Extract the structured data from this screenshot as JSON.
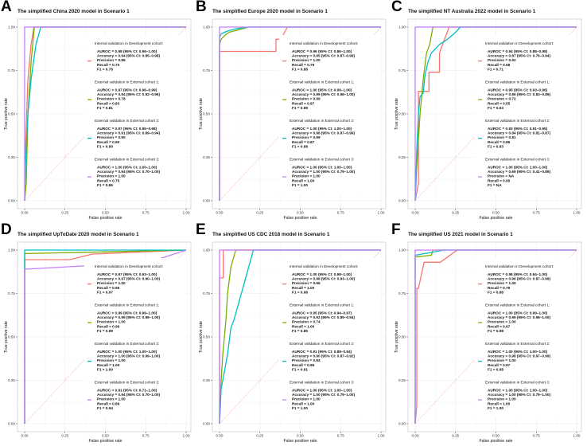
{
  "colors": {
    "dev": "#F8766D",
    "ext1": "#7CAE00",
    "ext2": "#00BFC4",
    "ext3": "#C77CFF",
    "diag": "#F8766D"
  },
  "chart_data": [
    {
      "type": "line",
      "label": "A",
      "title": "The simplified China 2020 model in Scenario 1",
      "xlabel": "False positive rate",
      "ylabel": "True positive rate",
      "xlim": [
        0,
        1
      ],
      "ylim": [
        0,
        1
      ],
      "xticks": [
        "0.00",
        "0.25",
        "0.50",
        "0.75",
        "1.00"
      ],
      "yticks": [
        "0.00",
        "0.25",
        "0.50",
        "0.75",
        "1.00"
      ],
      "grid": true,
      "legend_position": "right",
      "series": [
        {
          "key": "dev",
          "x": [
            0,
            0.005,
            0.02,
            0.04,
            0.057,
            1
          ],
          "y": [
            0,
            0.3,
            0.7,
            0.9,
            1,
            1
          ]
        },
        {
          "key": "ext1",
          "x": [
            0,
            0.01,
            0.02,
            0.04,
            0.06,
            1
          ],
          "y": [
            0,
            0.1,
            0.5,
            0.8,
            1,
            1
          ]
        },
        {
          "key": "ext2",
          "x": [
            0,
            0.005,
            0.02,
            0.04,
            0.07,
            0.1,
            1
          ],
          "y": [
            0,
            0.2,
            0.5,
            0.7,
            0.9,
            1,
            1
          ]
        },
        {
          "key": "ext3",
          "x": [
            0,
            0,
            1
          ],
          "y": [
            0,
            1,
            1
          ]
        }
      ],
      "legend": [
        {
          "key": "dev",
          "header": "Internal validation in Development cohort:",
          "lines": [
            "AUROC    = 0.98 (95% CI: 0.96–1.00)",
            "Accuracy = 0.94 (95% CI: 0.85–0.98)",
            "Precision = 0.88",
            "Recall      = 0.70",
            "F1            = 0.78"
          ]
        },
        {
          "key": "ext1",
          "header": "External validation in External cohort 1:",
          "lines": [
            "AUROC    = 0.97 (95% CI: 0.96–0.99)",
            "Accuracy = 0.94 (95% CI: 0.92–0.96)",
            "Precision = 0.78",
            "Recall      = 0.83",
            "F1            = 0.81"
          ]
        },
        {
          "key": "ext2",
          "header": "External validation in External cohort 2:",
          "lines": [
            "AUROC    = 0.97 (95% CI: 0.95–0.98)",
            "Accuracy = 0.91 (95% CI: 0.89–0.94)",
            "Precision = 0.90",
            "Recall      = 0.90",
            "F1            = 0.90"
          ]
        },
        {
          "key": "ext3",
          "header": "External validation in External cohort 3:",
          "lines": [
            "AUROC    = 1.00 (95% CI: 1.00–1.00)",
            "Accuracy = 0.94 (95% CI: 0.70–1.00)",
            "Precision = 1.00",
            "Recall      = 0.75",
            "F1            = 0.86"
          ]
        }
      ]
    },
    {
      "type": "line",
      "label": "B",
      "title": "The simplified Europe 2020 model in Scenario 1",
      "xlabel": "False positive rate",
      "ylabel": "True positive rate",
      "xlim": [
        0,
        1
      ],
      "ylim": [
        0,
        1
      ],
      "xticks": [
        "0.00",
        "0.25",
        "0.50",
        "0.75",
        "1.00"
      ],
      "yticks": [
        "0.00",
        "0.25",
        "0.50",
        "0.75",
        "1.00"
      ],
      "grid": true,
      "legend_position": "right",
      "series": [
        {
          "key": "dev",
          "x": [
            0,
            0,
            0.35,
            0.35,
            0.38,
            0.42,
            1
          ],
          "y": [
            0,
            0.86,
            0.86,
            0.93,
            0.93,
            1,
            1
          ]
        },
        {
          "key": "ext1",
          "x": [
            0,
            0,
            0.01,
            0.03,
            0.06,
            0.1,
            0.18,
            1
          ],
          "y": [
            0,
            0.9,
            0.93,
            0.95,
            0.97,
            0.98,
            1,
            1
          ]
        },
        {
          "key": "ext2",
          "x": [
            0,
            0,
            0.01,
            0.03,
            0.06,
            0.1,
            0.18,
            1
          ],
          "y": [
            0,
            0.94,
            0.96,
            0.97,
            0.98,
            0.99,
            1,
            1
          ]
        },
        {
          "key": "ext3",
          "x": [
            0,
            0,
            1
          ],
          "y": [
            0,
            1,
            1
          ]
        }
      ],
      "legend": [
        {
          "key": "dev",
          "header": "Internal validation in Development cohort:",
          "lines": [
            "AUROC    = 0.96 (95% CI: 0.86–1.00)",
            "Accuracy = 0.95 (95% CI: 0.87–0.99)",
            "Precision = 1.00",
            "Recall      = 0.79",
            "F1            = 0.88"
          ]
        },
        {
          "key": "ext1",
          "header": "External validation in External cohort 1:",
          "lines": [
            "AUROC    = 1.00 (95% CI: 0.99–1.00)",
            "Accuracy = 0.99 (95% CI: 0.98–1.00)",
            "Precision = 0.99",
            "Recall      = 0.97",
            "F1            = 0.98"
          ]
        },
        {
          "key": "ext2",
          "header": "External validation in External cohort 2:",
          "lines": [
            "AUROC    = 1.00 (95% CI: 1.00–1.00)",
            "Accuracy = 0.98 (95% CI: 0.97–0.99)",
            "Precision = 0.99",
            "Recall      = 0.97",
            "F1            = 0.98"
          ]
        },
        {
          "key": "ext3",
          "header": "External validation in External cohort 3:",
          "lines": [
            "AUROC    = 1.00 (95% CI: 1.00–1.00)",
            "Accuracy = 1.00 (95% CI: 0.79–1.00)",
            "Precision = 1.00",
            "Recall      = 1.00",
            "F1            = 1.00"
          ]
        }
      ]
    },
    {
      "type": "line",
      "label": "C",
      "title": "The simplified NT Australia 2022 model in Scenario 1",
      "xlabel": "False positive rate",
      "ylabel": "True positive rate",
      "xlim": [
        0,
        1
      ],
      "ylim": [
        0,
        1
      ],
      "xticks": [
        "0.00",
        "0.25",
        "0.50",
        "0.75",
        "1.00"
      ],
      "yticks": [
        "0.00",
        "0.25",
        "0.50",
        "0.75",
        "1.00"
      ],
      "grid": true,
      "legend_position": "right",
      "series": [
        {
          "key": "dev",
          "x": [
            0,
            0.02,
            0.02,
            0.085,
            0.085,
            0.15,
            0.15,
            0.21,
            1
          ],
          "y": [
            0,
            0.1,
            0.63,
            0.63,
            0.74,
            0.74,
            0.85,
            1,
            1
          ]
        },
        {
          "key": "ext1",
          "x": [
            0,
            0.01,
            0.03,
            0.05,
            0.07,
            0.09,
            0.11,
            1
          ],
          "y": [
            0,
            0.2,
            0.5,
            0.7,
            0.85,
            0.9,
            1,
            1
          ]
        },
        {
          "key": "ext2",
          "x": [
            0,
            0.01,
            0.02,
            0.03,
            0.05,
            0.06,
            0.08,
            0.1,
            0.15,
            0.2,
            0.25,
            0.28,
            1
          ],
          "y": [
            0,
            0.3,
            0.5,
            0.6,
            0.62,
            0.72,
            0.8,
            0.85,
            0.9,
            0.93,
            0.97,
            1,
            1
          ]
        },
        {
          "key": "ext3",
          "x": [
            0,
            0,
            1
          ],
          "y": [
            0,
            1,
            1
          ]
        }
      ],
      "legend": [
        {
          "key": "dev",
          "header": "Internal validation in Development cohort:",
          "lines": [
            "AUROC    = 0.94 (95% CI: 0.88–0.98)",
            "Accuracy = 0.87 (95% CI: 0.76–0.94)",
            "Precision = 0.92",
            "Recall      = 0.58",
            "F1            = 0.71"
          ]
        },
        {
          "key": "ext1",
          "header": "External validation in External cohort 1:",
          "lines": [
            "AUROC    = 0.95 (95% CI: 0.93–0.96)",
            "Accuracy = 0.86 (95% CI: 0.83–0.89)",
            "Precision = 0.72",
            "Recall      = 0.55",
            "F1            = 0.63"
          ]
        },
        {
          "key": "ext2",
          "header": "External validation in External cohort 2:",
          "lines": [
            "AUROC    = 0.93 (95% CI: 0.91–0.95)",
            "Accuracy = 0.84 (95% CI: 0.81–0.87)",
            "Precision = 0.81",
            "Recall      = 0.86",
            "F1            = 0.83"
          ]
        },
        {
          "key": "ext3",
          "header": "External validation in External cohort 3:",
          "lines": [
            "AUROC    = 1.00 (95% CI: 1.00–1.00)",
            "Accuracy = 0.69 (95% CI: 0.41–0.89)",
            "Precision = NA",
            "Recall      = 0.00",
            "F1            = NA"
          ]
        }
      ]
    },
    {
      "type": "line",
      "label": "D",
      "title": "The simplified UpToDate 2020 model in Scenario 1",
      "xlabel": "False positive rate",
      "ylabel": "True positive rate",
      "xlim": [
        0,
        1
      ],
      "ylim": [
        0,
        1
      ],
      "xticks": [
        "0.00",
        "0.25",
        "0.50",
        "0.75",
        "1.00"
      ],
      "yticks": [
        "0.00",
        "0.25",
        "0.50",
        "0.75",
        "1.00"
      ],
      "grid": true,
      "legend_position": "right",
      "series": [
        {
          "key": "dev",
          "x": [
            0,
            0,
            0.28,
            0.42,
            1
          ],
          "y": [
            0,
            0.945,
            0.945,
            0.977,
            1
          ]
        },
        {
          "key": "ext1",
          "x": [
            0,
            0,
            1
          ],
          "y": [
            0,
            0.98,
            1
          ]
        },
        {
          "key": "ext2",
          "x": [
            0,
            0,
            1
          ],
          "y": [
            0,
            1,
            1
          ]
        },
        {
          "key": "ext3",
          "x": [
            0,
            0,
            0.77,
            1
          ],
          "y": [
            0,
            0.89,
            0.93,
            1
          ]
        }
      ],
      "legend": [
        {
          "key": "dev",
          "header": "Internal validation in Development cohort:",
          "lines": [
            "AUROC    = 0.97 (95% CI: 0.93–1.00)",
            "Accuracy = 0.97 (95% CI: 0.90–1.00)",
            "Precision = 1.00",
            "Recall      = 0.95",
            "F1            = 0.97"
          ]
        },
        {
          "key": "ext1",
          "header": "External validation in External cohort 1:",
          "lines": [
            "AUROC    = 0.99 (95% CI: 0.99–1.00)",
            "Accuracy = 0.99 (95% CI: 0.98–1.00)",
            "Precision = 1.00",
            "Recall      = 0.99",
            "F1            = 0.99"
          ]
        },
        {
          "key": "ext2",
          "header": "External validation in External cohort 2:",
          "lines": [
            "AUROC    = 1.00 (95% CI: 1.00–1.00)",
            "Accuracy = 1.00 (95% CI: 0.99–1.00)",
            "Precision = 1.00",
            "Recall      = 1.00",
            "F1            = 1.00"
          ]
        },
        {
          "key": "ext3",
          "header": "External validation in External cohort 3:",
          "lines": [
            "AUROC    = 0.91 (95% CI: 0.71–1.00)",
            "Accuracy = 0.94 (95% CI: 0.70–1.00)",
            "Precision = 1.00",
            "Recall      = 0.89",
            "F1            = 0.94"
          ]
        }
      ]
    },
    {
      "type": "line",
      "label": "E",
      "title": "The simplified US CDC 2018 model in Scenario 1",
      "xlabel": "False positive rate",
      "ylabel": "True positive rate",
      "xlim": [
        0,
        1
      ],
      "ylim": [
        0,
        1
      ],
      "xticks": [
        "0.00",
        "0.25",
        "0.50",
        "0.75",
        "1.00"
      ],
      "yticks": [
        "0.00",
        "0.25",
        "0.50",
        "0.75",
        "1.00"
      ],
      "grid": true,
      "legend_position": "right",
      "series": [
        {
          "key": "dev",
          "x": [
            0,
            0,
            0.023,
            0.023,
            1
          ],
          "y": [
            0,
            0.84,
            0.84,
            1,
            1
          ]
        },
        {
          "key": "ext1",
          "x": [
            0,
            0.005,
            0.01,
            0.02,
            0.03,
            0.04,
            0.05,
            0.07,
            0.1,
            1
          ],
          "y": [
            0,
            0.1,
            0.25,
            0.4,
            0.5,
            0.6,
            0.75,
            0.9,
            1,
            1
          ]
        },
        {
          "key": "ext2",
          "x": [
            0,
            0.01,
            0.02,
            0.03,
            0.04,
            0.05,
            0.07,
            0.09,
            0.12,
            0.15,
            0.18,
            0.21,
            1
          ],
          "y": [
            0,
            0.2,
            0.25,
            0.3,
            0.35,
            0.4,
            0.55,
            0.6,
            0.7,
            0.8,
            0.9,
            1,
            1
          ]
        },
        {
          "key": "ext3",
          "x": [
            0,
            0,
            1
          ],
          "y": [
            0,
            1,
            1
          ]
        }
      ],
      "legend": [
        {
          "key": "dev",
          "header": "Internal validation in Development cohort:",
          "lines": [
            "AUROC    = 1.00 (95% CI: 0.98–1.00)",
            "Accuracy = 0.98 (95% CI: 0.93–1.00)",
            "Precision = 0.96",
            "Recall      = 1.00",
            "F1            = 0.98"
          ]
        },
        {
          "key": "ext1",
          "header": "External validation in External cohort 1:",
          "lines": [
            "AUROC    = 0.95 (95% CI: 0.94–0.97)",
            "Accuracy = 0.92 (95% CI: 0.89–0.94)",
            "Precision = 0.74",
            "Recall      = 1.00",
            "F1            = 0.85"
          ]
        },
        {
          "key": "ext2",
          "header": "External validation in External cohort 2:",
          "lines": [
            "AUROC    = 0.91 (95% CI: 0.88–0.94)",
            "Accuracy = 0.90 (95% CI: 0.87–0.92)",
            "Precision = 0.84",
            "Recall      = 0.99",
            "F1            = 0.91"
          ]
        },
        {
          "key": "ext3",
          "header": "External validation in External cohort 3:",
          "lines": [
            "AUROC    = 1.00 (95% CI: 1.00–1.00)",
            "Accuracy = 1.00 (95% CI: 0.79–1.00)",
            "Precision = 1.00",
            "Recall      = 1.00",
            "F1            = 1.00"
          ]
        }
      ]
    },
    {
      "type": "line",
      "label": "F",
      "title": "The simplified US 2021 model in Scenario 1",
      "xlabel": "False positive rate",
      "ylabel": "True positive rate",
      "xlim": [
        0,
        1
      ],
      "ylim": [
        0,
        1
      ],
      "xticks": [
        "0.00",
        "0.25",
        "0.50",
        "0.75",
        "1.00"
      ],
      "yticks": [
        "0.00",
        "0.25",
        "0.50",
        "0.75",
        "1.00"
      ],
      "grid": true,
      "legend_position": "right",
      "series": [
        {
          "key": "dev",
          "x": [
            0,
            0.01,
            0.01,
            0.02,
            0.055,
            0.155,
            0.26,
            1
          ],
          "y": [
            0,
            0.1,
            0.78,
            0.78,
            0.93,
            0.93,
            1,
            1
          ]
        },
        {
          "key": "ext1",
          "x": [
            0,
            0,
            0.1,
            0.11,
            1
          ],
          "y": [
            0,
            0.96,
            0.97,
            1,
            1
          ]
        },
        {
          "key": "ext2",
          "x": [
            0,
            0,
            0.18,
            1
          ],
          "y": [
            0,
            0.97,
            1,
            1
          ]
        },
        {
          "key": "ext3",
          "x": [
            0,
            0,
            1
          ],
          "y": [
            0,
            1,
            1
          ]
        }
      ],
      "legend": [
        {
          "key": "dev",
          "header": "Internal validation in Development cohort:",
          "lines": [
            "AUROC    = 0.98 (95% CI: 0.94–1.00)",
            "Accuracy = 0.96 (95% CI: 0.87–0.99)",
            "Precision = 1.00",
            "Recall      = 0.79",
            "F1            = 0.88"
          ]
        },
        {
          "key": "ext1",
          "header": "External validation in External cohort 1:",
          "lines": [
            "AUROC    = 1.00 (95% CI: 0.99–1.00)",
            "Accuracy = 0.99 (95% CI: 0.98–1.00)",
            "Precision = 1.00",
            "Recall      = 0.97",
            "F1            = 0.98"
          ]
        },
        {
          "key": "ext2",
          "header": "External validation in External cohort 2:",
          "lines": [
            "AUROC    = 1.00 (95% CI: 1.00–1.00)",
            "Accuracy = 0.98 (95% CI: 0.97–0.99)",
            "Precision = 1.00",
            "Recall      = 0.97",
            "F1            = 0.98"
          ]
        },
        {
          "key": "ext3",
          "header": "External validation in External cohort 3:",
          "lines": [
            "AUROC    = 1.00 (95% CI: 1.00–1.00)",
            "Accuracy = 1.00 (95% CI: 0.79–1.00)",
            "Precision = 1.00",
            "Recall      = 1.00",
            "F1            = 1.00"
          ]
        }
      ]
    }
  ]
}
